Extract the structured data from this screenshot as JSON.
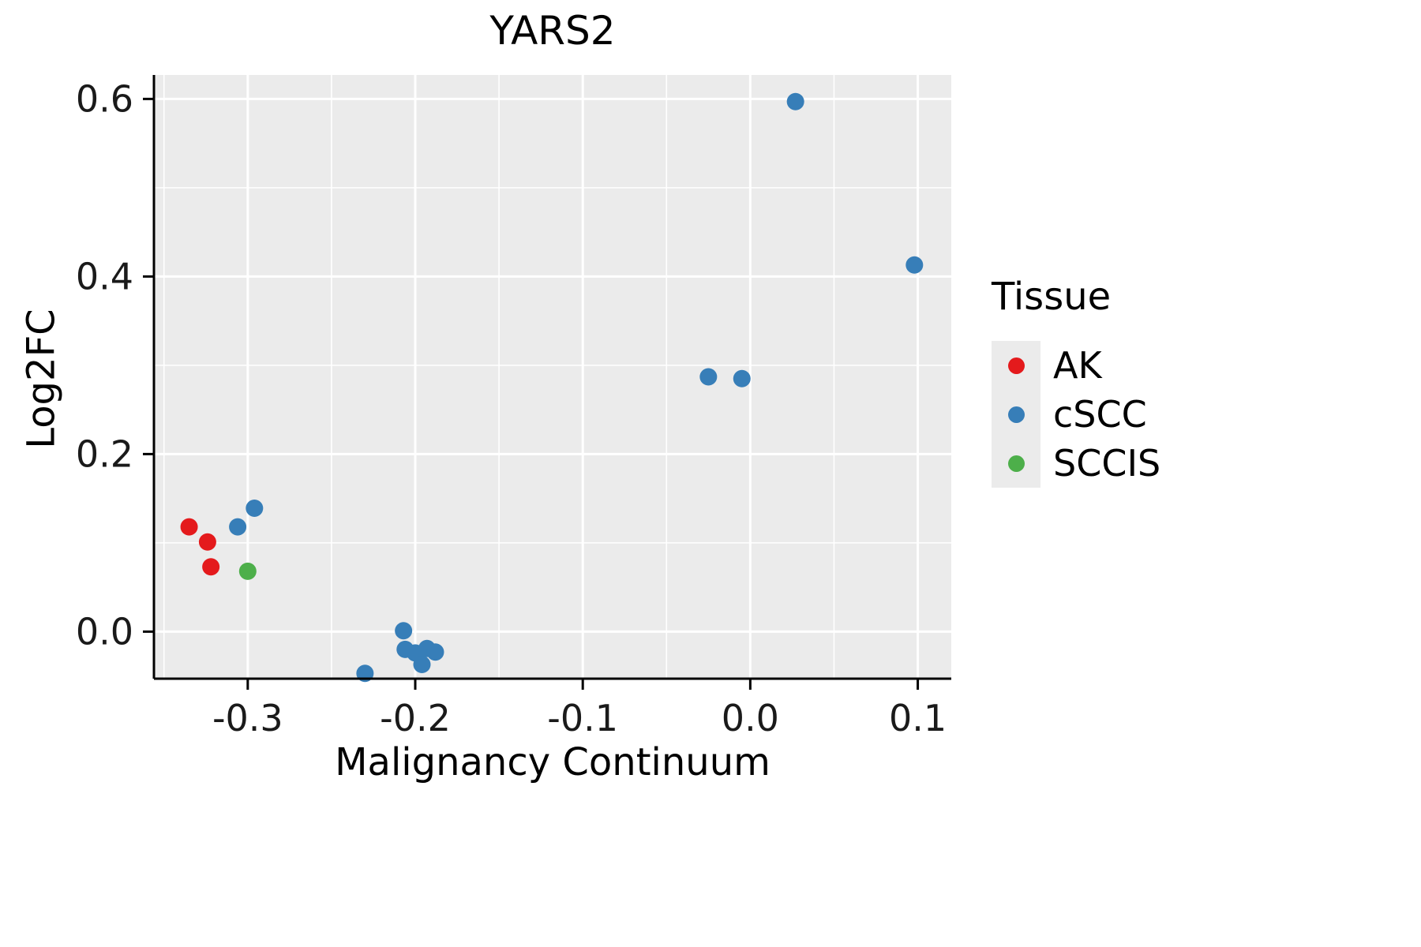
{
  "chart_data": {
    "type": "scatter",
    "title": "YARS2",
    "xlabel": "Malignancy Continuum",
    "ylabel": "Log2FC",
    "legend_title": "Tissue",
    "legend_position": "right",
    "grid": true,
    "panel_background": "#EBEBEB",
    "grid_color": "#FFFFFF",
    "axis_color": "#000000",
    "tick_text_color": "#1a1a1a",
    "xlim": [
      -0.356,
      0.12
    ],
    "ylim": [
      -0.053,
      0.627
    ],
    "x_ticks": [
      -0.3,
      -0.2,
      -0.1,
      0.0,
      0.1
    ],
    "x_tick_labels": [
      "-0.3",
      "-0.2",
      "-0.1",
      "0.0",
      "0.1"
    ],
    "y_ticks": [
      0.0,
      0.2,
      0.4,
      0.6
    ],
    "y_tick_labels": [
      "0.0",
      "0.2",
      "0.4",
      "0.6"
    ],
    "x_minor_ticks": [
      -0.35,
      -0.25,
      -0.15,
      -0.05,
      0.05
    ],
    "y_minor_ticks": [
      0.1,
      0.3,
      0.5
    ],
    "point_radius": 11,
    "series": [
      {
        "name": "AK",
        "color": "#E41A1C",
        "points": [
          [
            -0.335,
            0.118
          ],
          [
            -0.324,
            0.101
          ],
          [
            -0.322,
            0.073
          ]
        ]
      },
      {
        "name": "cSCC",
        "color": "#377EB8",
        "points": [
          [
            -0.306,
            0.118
          ],
          [
            -0.296,
            0.139
          ],
          [
            -0.23,
            -0.047
          ],
          [
            -0.207,
            0.001
          ],
          [
            -0.206,
            -0.02
          ],
          [
            -0.2,
            -0.024
          ],
          [
            -0.196,
            -0.037
          ],
          [
            -0.193,
            -0.019
          ],
          [
            -0.188,
            -0.023
          ],
          [
            -0.025,
            0.287
          ],
          [
            -0.005,
            0.285
          ],
          [
            0.027,
            0.597
          ],
          [
            0.098,
            0.413
          ]
        ]
      },
      {
        "name": "SCCIS",
        "color": "#4DAF4A",
        "points": [
          [
            -0.3,
            0.068
          ]
        ]
      }
    ]
  }
}
